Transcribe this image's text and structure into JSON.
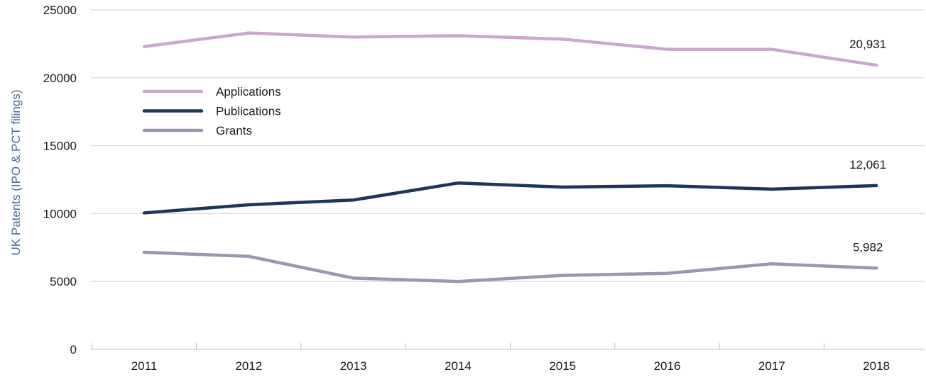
{
  "chart_data": {
    "type": "line",
    "title": "",
    "xlabel": "",
    "ylabel": "UK Patents (IPO & PCT filings)",
    "ylim": [
      0,
      25000
    ],
    "yticks": [
      0,
      5000,
      10000,
      15000,
      20000,
      25000
    ],
    "categories": [
      "2011",
      "2012",
      "2013",
      "2014",
      "2015",
      "2016",
      "2017",
      "2018"
    ],
    "grid": "horizontal",
    "legend_position": "upper-left",
    "series": [
      {
        "name": "Applications",
        "color": "#c9a9cb",
        "values": [
          22300,
          23300,
          23000,
          23100,
          22850,
          22100,
          22100,
          20931
        ],
        "end_label": "20,931"
      },
      {
        "name": "Publications",
        "color": "#1d3557",
        "values": [
          10050,
          10650,
          11000,
          12250,
          11950,
          12050,
          11800,
          12061
        ],
        "end_label": "12,061"
      },
      {
        "name": "Grants",
        "color": "#9b97ad",
        "values": [
          7150,
          6850,
          5250,
          5000,
          5450,
          5600,
          6300,
          5982
        ],
        "end_label": "5,982"
      }
    ]
  }
}
